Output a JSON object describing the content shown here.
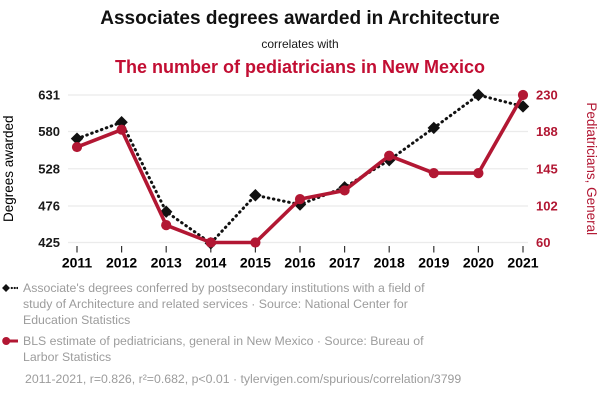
{
  "header": {
    "title": "Associates degrees awarded in Architecture",
    "subtitle": "correlates with",
    "red_title": "The number of pediatricians in New Mexico"
  },
  "chart_data": {
    "type": "line",
    "x": [
      2011,
      2012,
      2013,
      2014,
      2015,
      2016,
      2017,
      2018,
      2019,
      2020,
      2021
    ],
    "series": [
      {
        "name": "Associates degrees awarded in Architecture",
        "axis": "left",
        "style": "dotted",
        "marker": "diamond",
        "color_key": "black",
        "values": [
          570,
          593,
          468,
          424,
          491,
          478,
          502,
          540,
          585,
          631,
          615
        ]
      },
      {
        "name": "The number of pediatricians in New Mexico",
        "axis": "right",
        "style": "solid",
        "marker": "circle",
        "color_key": "red",
        "values": [
          170,
          190,
          80,
          60,
          60,
          110,
          120,
          160,
          140,
          140,
          230
        ]
      }
    ],
    "left_axis": {
      "label": "Degrees awarded",
      "ticks": [
        631,
        580,
        528,
        476,
        425
      ],
      "range": [
        425,
        631
      ]
    },
    "right_axis": {
      "label": "Pediatricians, General",
      "ticks": [
        230,
        188,
        145,
        102,
        60
      ],
      "range": [
        60,
        230
      ]
    },
    "grid": true,
    "legend_position": "bottom"
  },
  "legend": {
    "items": [
      {
        "marker": "black-diamond-dotted",
        "text": "Associate's degrees conferred by postsecondary institutions with a field of\nstudy of Architecture and related services · Source: National Center for\nEducation Statistics"
      },
      {
        "marker": "red-circle-line",
        "text": "BLS estimate of pediatricians, general in New Mexico · Source: Bureau of\nLarbor Statistics"
      }
    ]
  },
  "footer": {
    "text": "2011-2021, r=0.826, r²=0.682, p<0.01 · tylervigen.com/spurious/correlation/3799"
  },
  "colors": {
    "red": "#b21733",
    "red_title": "#c20e33",
    "black": "#111111",
    "grid": "#ebebeb",
    "legend_gray": "#9c9c9c",
    "tick_black": "#1a1a1a"
  }
}
